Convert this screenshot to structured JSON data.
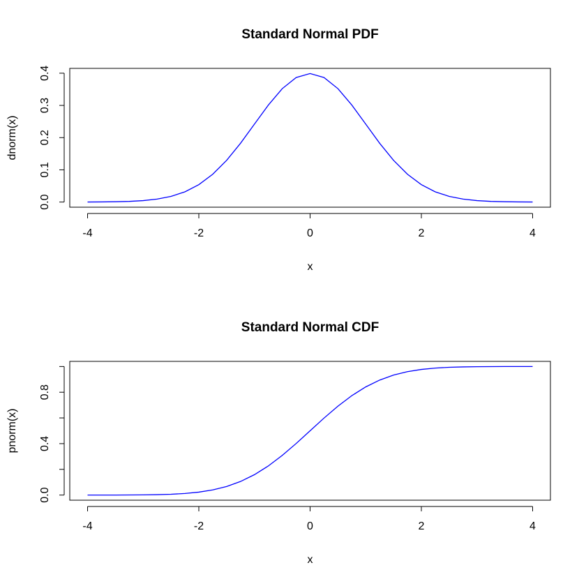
{
  "chart_data": [
    {
      "type": "line",
      "title": "Standard Normal PDF",
      "xlabel": "x",
      "ylabel": "dnorm(x)",
      "x": [
        -4,
        -3.75,
        -3.5,
        -3.25,
        -3,
        -2.75,
        -2.5,
        -2.25,
        -2,
        -1.75,
        -1.5,
        -1.25,
        -1,
        -0.75,
        -0.5,
        -0.25,
        0,
        0.25,
        0.5,
        0.75,
        1,
        1.25,
        1.5,
        1.75,
        2,
        2.25,
        2.5,
        2.75,
        3,
        3.25,
        3.5,
        3.75,
        4
      ],
      "values": [
        0.0001,
        0.0004,
        0.0009,
        0.002,
        0.0044,
        0.0091,
        0.0175,
        0.0317,
        0.054,
        0.0863,
        0.1295,
        0.1826,
        0.242,
        0.3011,
        0.3521,
        0.3867,
        0.3989,
        0.3867,
        0.3521,
        0.3011,
        0.242,
        0.1826,
        0.1295,
        0.0863,
        0.054,
        0.0317,
        0.0175,
        0.0091,
        0.0044,
        0.002,
        0.0009,
        0.0004,
        0.0001
      ],
      "color": "#0000ff",
      "xlim": [
        -4.32,
        4.32
      ],
      "xticks": [
        -4,
        -2,
        0,
        2,
        4
      ],
      "ylim": [
        -0.016,
        0.415
      ],
      "yticks": [
        {
          "value": 0,
          "label": "0.0"
        },
        0.1,
        0.2,
        0.3,
        0.4
      ]
    },
    {
      "type": "line",
      "title": "Standard Normal CDF",
      "xlabel": "x",
      "ylabel": "pnorm(x)",
      "x": [
        -4,
        -3.75,
        -3.5,
        -3.25,
        -3,
        -2.75,
        -2.5,
        -2.25,
        -2,
        -1.75,
        -1.5,
        -1.25,
        -1,
        -0.75,
        -0.5,
        -0.25,
        0,
        0.25,
        0.5,
        0.75,
        1,
        1.25,
        1.5,
        1.75,
        2,
        2.25,
        2.5,
        2.75,
        3,
        3.25,
        3.5,
        3.75,
        4
      ],
      "values": [
        0,
        0.0001,
        0.0002,
        0.0006,
        0.0013,
        0.003,
        0.0062,
        0.0122,
        0.0228,
        0.0401,
        0.0668,
        0.1056,
        0.1587,
        0.2266,
        0.3085,
        0.4013,
        0.5,
        0.5987,
        0.6915,
        0.7734,
        0.8413,
        0.8944,
        0.9332,
        0.9599,
        0.9772,
        0.9878,
        0.9938,
        0.997,
        0.9987,
        0.9994,
        0.9998,
        0.9999,
        1
      ],
      "color": "#0000ff",
      "xlim": [
        -4.32,
        4.32
      ],
      "xticks": [
        -4,
        -2,
        0,
        2,
        4
      ],
      "ylim": [
        -0.04,
        1.04
      ],
      "yticks": [
        {
          "value": 0,
          "label": "0.0"
        },
        {
          "value": 0.2,
          "label": null
        },
        0.4,
        {
          "value": 0.6,
          "label": null
        },
        0.8,
        {
          "value": 1,
          "label": null
        }
      ]
    }
  ]
}
